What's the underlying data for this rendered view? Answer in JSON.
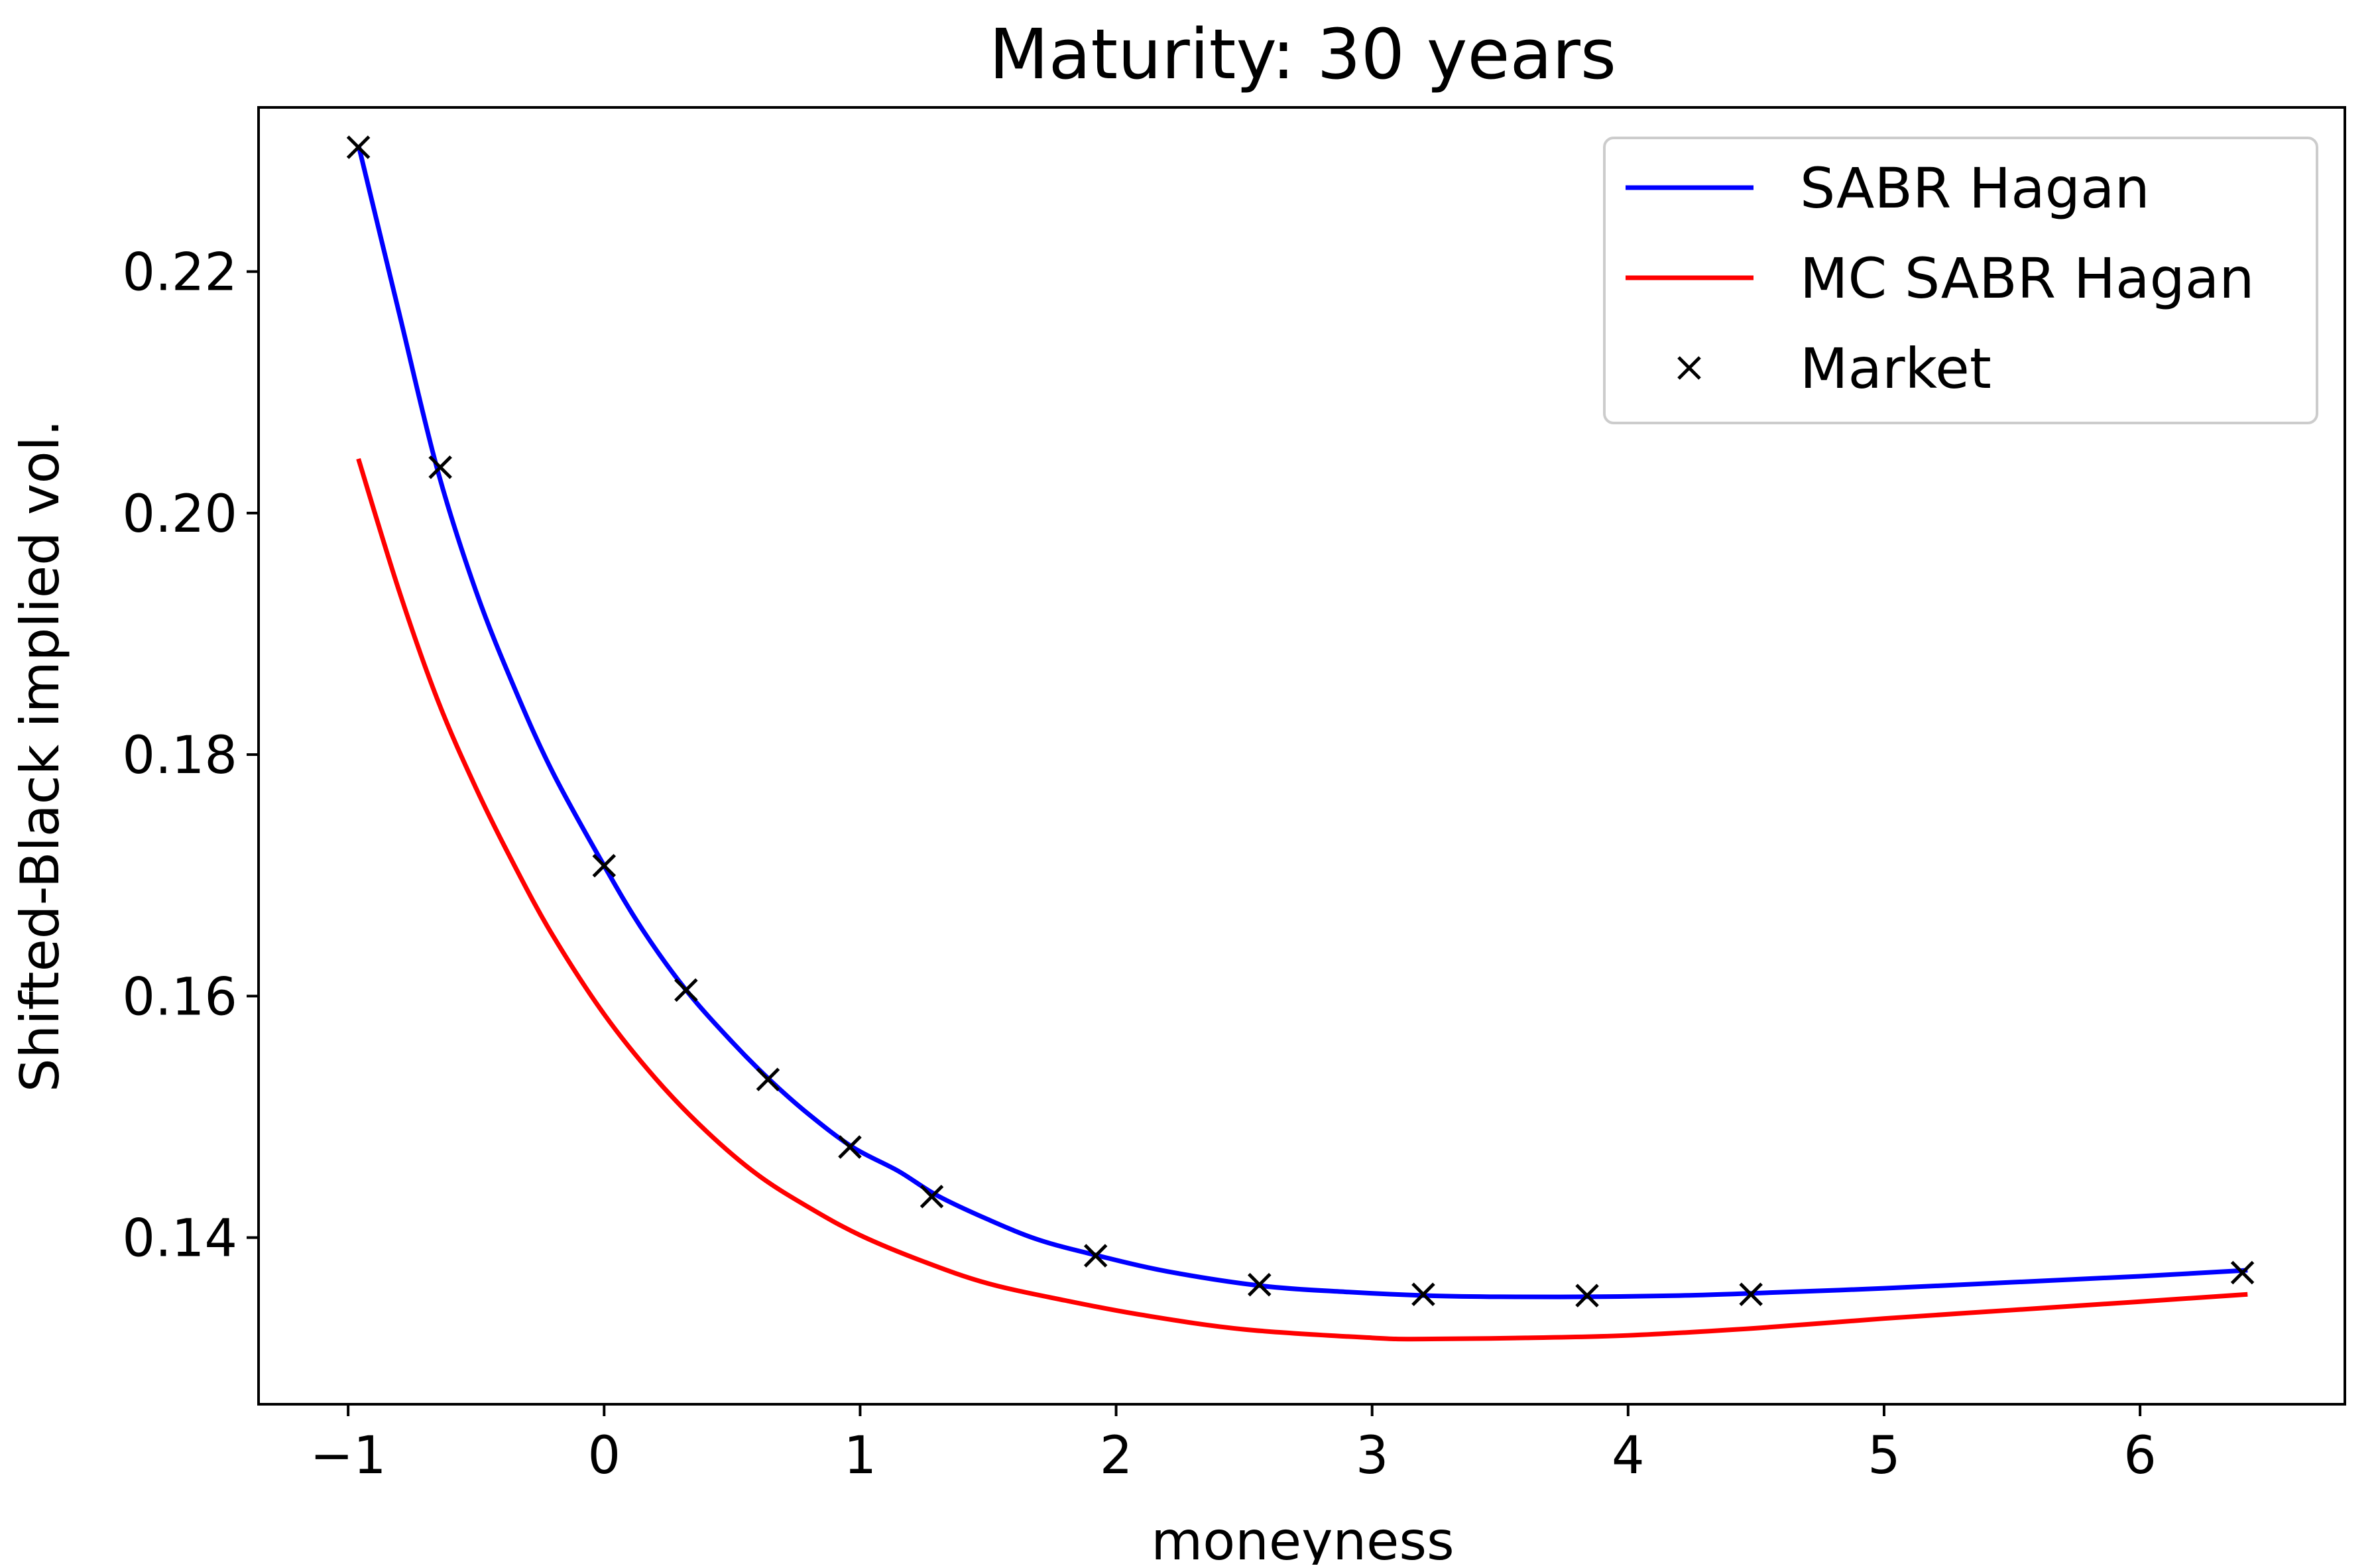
{
  "chart_data": {
    "type": "line",
    "title": "Maturity: 30 years",
    "xlabel": "moneyness",
    "ylabel": "Shifted-Black implied vol.",
    "xlim": [
      -1.35,
      6.8
    ],
    "ylim": [
      0.1262,
      0.2336
    ],
    "xticks": [
      -1,
      0,
      1,
      2,
      3,
      4,
      5,
      6
    ],
    "xtick_labels": [
      "−1",
      "0",
      "1",
      "2",
      "3",
      "4",
      "5",
      "6"
    ],
    "yticks": [
      0.14,
      0.16,
      0.18,
      0.2,
      0.22
    ],
    "ytick_labels": [
      "0.14",
      "0.16",
      "0.18",
      "0.20",
      "0.22"
    ],
    "grid": false,
    "legend_position": "top-right",
    "series": [
      {
        "name": "SABR Hagan",
        "kind": "line",
        "color": "#0000ff",
        "x": [
          -0.96,
          -0.8,
          -0.65,
          -0.5,
          -0.35,
          -0.2,
          0.0,
          0.15,
          0.32,
          0.5,
          0.65,
          0.8,
          0.97,
          1.15,
          1.3,
          1.5,
          1.7,
          1.93,
          2.2,
          2.57,
          2.9,
          3.21,
          3.5,
          3.85,
          4.2,
          4.5,
          5.0,
          5.5,
          6.0,
          6.42
        ],
        "y": [
          0.2305,
          0.2165,
          0.2035,
          0.1935,
          0.1855,
          0.1785,
          0.1708,
          0.1655,
          0.1605,
          0.1562,
          0.153,
          0.1502,
          0.1475,
          0.1455,
          0.1435,
          0.1415,
          0.1398,
          0.1385,
          0.1372,
          0.136,
          0.1355,
          0.1352,
          0.1351,
          0.1351,
          0.1352,
          0.1354,
          0.1358,
          0.1363,
          0.1368,
          0.1373
        ]
      },
      {
        "name": "MC SABR Hagan",
        "kind": "line",
        "color": "#ff0000",
        "x": [
          -0.96,
          -0.8,
          -0.65,
          -0.5,
          -0.35,
          -0.2,
          0.0,
          0.2,
          0.4,
          0.6,
          0.8,
          1.0,
          1.25,
          1.5,
          1.8,
          2.1,
          2.5,
          3.0,
          3.2,
          3.6,
          4.0,
          4.5,
          5.0,
          5.5,
          6.0,
          6.42
        ],
        "y": [
          0.2045,
          0.1935,
          0.1845,
          0.1772,
          0.1708,
          0.165,
          0.1585,
          0.1532,
          0.1488,
          0.1452,
          0.1425,
          0.1402,
          0.138,
          0.1362,
          0.1348,
          0.1336,
          0.1324,
          0.1317,
          0.1316,
          0.1317,
          0.1319,
          0.1325,
          0.1333,
          0.134,
          0.1347,
          0.1353
        ]
      },
      {
        "name": "Market",
        "kind": "scatter",
        "marker": "x",
        "color": "#000000",
        "x": [
          -0.96,
          -0.64,
          0.0,
          0.32,
          0.64,
          0.96,
          1.28,
          1.92,
          2.56,
          3.2,
          3.84,
          4.48,
          6.4
        ],
        "y": [
          0.2303,
          0.2038,
          0.1708,
          0.1605,
          0.1531,
          0.1475,
          0.1434,
          0.1385,
          0.1361,
          0.1353,
          0.1352,
          0.1353,
          0.1371
        ]
      }
    ]
  }
}
